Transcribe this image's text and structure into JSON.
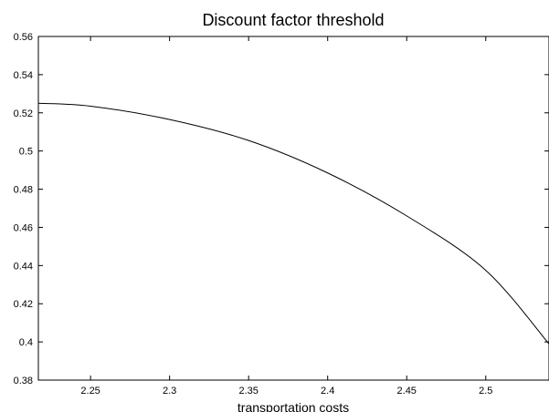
{
  "chart_data": {
    "type": "line",
    "title": "Discount factor threshold",
    "xlabel": "transportation costs",
    "ylabel": "",
    "xlim": [
      2.217,
      2.54
    ],
    "ylim": [
      0.38,
      0.56
    ],
    "xticks": [
      "2.25",
      "2.3",
      "2.35",
      "2.4",
      "2.45",
      "2.5"
    ],
    "yticks": [
      "0.38",
      "0.4",
      "0.42",
      "0.44",
      "0.46",
      "0.48",
      "0.5",
      "0.52",
      "0.54",
      "0.56"
    ],
    "grid": false,
    "series": [
      {
        "color": "#000000",
        "x": [
          2.217,
          2.25,
          2.3,
          2.35,
          2.4,
          2.45,
          2.5,
          2.54
        ],
        "y": [
          0.525,
          0.5235,
          0.5165,
          0.5055,
          0.4885,
          0.466,
          0.4375,
          0.399
        ]
      }
    ]
  }
}
